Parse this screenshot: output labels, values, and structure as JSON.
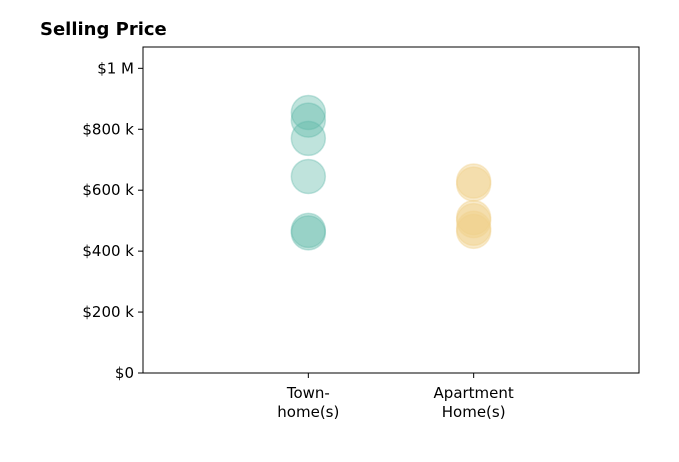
{
  "chart_data": {
    "type": "scatter",
    "title": "Selling Price",
    "xlabel": "",
    "ylabel": "",
    "categories": [
      [
        "Town-",
        "home(s)"
      ],
      [
        "Apartment",
        "Home(s)"
      ]
    ],
    "xlim": [
      -1,
      2
    ],
    "ylim": [
      0,
      1070000
    ],
    "y_ticks": [
      {
        "value": 0,
        "label": "$0"
      },
      {
        "value": 200000,
        "label": "$200 k"
      },
      {
        "value": 400000,
        "label": "$400 k"
      },
      {
        "value": 600000,
        "label": "$600 k"
      },
      {
        "value": 800000,
        "label": "$800 k"
      },
      {
        "value": 1000000,
        "label": "$1 M"
      }
    ],
    "series": [
      {
        "color": "#5fb8a8",
        "opacity": 0.4,
        "x": 0,
        "values": [
          855000,
          830000,
          770000,
          645000,
          468000,
          460000
        ]
      },
      {
        "color": "#f0d08a",
        "opacity": 0.45,
        "x": 1,
        "values": [
          630000,
          620000,
          510000,
          500000,
          475000,
          465000
        ]
      }
    ],
    "grid": false,
    "legend": "none"
  }
}
